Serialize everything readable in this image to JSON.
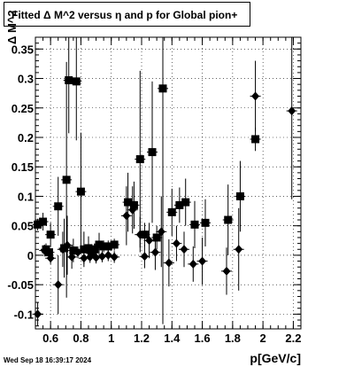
{
  "chart_data": {
    "type": "scatter",
    "title": "Fitted Δ M^2 versus η and p for Global pion+",
    "xlabel": "p[GeV/c]",
    "ylabel": "Δ M^2",
    "xlim": [
      0.5,
      2.25
    ],
    "ylim": [
      -0.125,
      0.37
    ],
    "grid": true,
    "x_ticks": [
      "0.6",
      "0.8",
      "1",
      "1.2",
      "1.4",
      "1.6",
      "1.8",
      "2",
      "2.2"
    ],
    "y_ticks": [
      "-0.1",
      "-0.05",
      "0",
      "0.05",
      "0.1",
      "0.15",
      "0.2",
      "0.25",
      "0.3",
      "0.35"
    ],
    "series": [
      {
        "marker": "square",
        "points": [
          {
            "x": 0.515,
            "y": 0.052,
            "err": 0.01
          },
          {
            "x": 0.55,
            "y": 0.057,
            "err": 0.015
          },
          {
            "x": 0.57,
            "y": 0.01,
            "err": 0.01
          },
          {
            "x": 0.59,
            "y": 0.005,
            "err": 0.01
          },
          {
            "x": 0.6,
            "y": 0.035,
            "err": 0.02
          },
          {
            "x": 0.65,
            "y": 0.083,
            "err": 0.05
          },
          {
            "x": 0.69,
            "y": 0.012,
            "err": 0.05
          },
          {
            "x": 0.705,
            "y": 0.128,
            "err": 0.2
          },
          {
            "x": 0.72,
            "y": 0.297,
            "err": 0.09
          },
          {
            "x": 0.75,
            "y": 0.008,
            "err": 0.02
          },
          {
            "x": 0.77,
            "y": 0.295,
            "err": 0.1
          },
          {
            "x": 0.8,
            "y": 0.108,
            "err": 0.1
          },
          {
            "x": 0.82,
            "y": 0.01,
            "err": 0.03
          },
          {
            "x": 0.85,
            "y": 0.012,
            "err": 0.02
          },
          {
            "x": 0.87,
            "y": 0.003,
            "err": 0.01
          },
          {
            "x": 0.89,
            "y": 0.01,
            "err": 0.01
          },
          {
            "x": 0.92,
            "y": 0.018,
            "err": 0.02
          },
          {
            "x": 0.95,
            "y": 0.015,
            "err": 0.01
          },
          {
            "x": 0.98,
            "y": 0.015,
            "err": 0.01
          },
          {
            "x": 1.02,
            "y": 0.018,
            "err": 0.01
          },
          {
            "x": 1.11,
            "y": 0.09,
            "err": 0.05
          },
          {
            "x": 1.15,
            "y": 0.085,
            "err": 0.04
          },
          {
            "x": 1.19,
            "y": 0.163,
            "err": 0.15
          },
          {
            "x": 1.22,
            "y": 0.035,
            "err": 0.02
          },
          {
            "x": 1.27,
            "y": 0.175,
            "err": 0.12
          },
          {
            "x": 1.3,
            "y": 0.03,
            "err": 0.02
          },
          {
            "x": 1.34,
            "y": 0.283,
            "err": 0.4
          },
          {
            "x": 1.4,
            "y": 0.073,
            "err": 0.04
          },
          {
            "x": 1.45,
            "y": 0.085,
            "err": 0.03
          },
          {
            "x": 1.49,
            "y": 0.09,
            "err": 0.04
          },
          {
            "x": 1.55,
            "y": 0.052,
            "err": 0.04
          },
          {
            "x": 1.62,
            "y": 0.055,
            "err": 0.04
          },
          {
            "x": 1.77,
            "y": 0.06,
            "err": 0.06
          },
          {
            "x": 1.85,
            "y": 0.1,
            "err": 0.06
          },
          {
            "x": 1.95,
            "y": 0.197,
            "err": 0.02
          }
        ]
      },
      {
        "marker": "diamond",
        "points": [
          {
            "x": 0.515,
            "y": -0.1,
            "err": 0.02
          },
          {
            "x": 0.56,
            "y": 0.008,
            "err": 0.01
          },
          {
            "x": 0.6,
            "y": -0.005,
            "err": 0.01
          },
          {
            "x": 0.65,
            "y": -0.05,
            "err": 0.05
          },
          {
            "x": 0.68,
            "y": 0.01,
            "err": 0.03
          },
          {
            "x": 0.71,
            "y": 0.017,
            "err": 0.05
          },
          {
            "x": 0.74,
            "y": -0.003,
            "err": 0.02
          },
          {
            "x": 0.78,
            "y": 0.005,
            "err": 0.01
          },
          {
            "x": 0.82,
            "y": -0.005,
            "err": 0.01
          },
          {
            "x": 0.86,
            "y": -0.003,
            "err": 0.01
          },
          {
            "x": 0.9,
            "y": -0.004,
            "err": 0.01
          },
          {
            "x": 0.94,
            "y": -0.002,
            "err": 0.01
          },
          {
            "x": 0.98,
            "y": 0.0,
            "err": 0.01
          },
          {
            "x": 1.02,
            "y": -0.003,
            "err": 0.01
          },
          {
            "x": 1.1,
            "y": 0.067,
            "err": 0.05
          },
          {
            "x": 1.14,
            "y": 0.077,
            "err": 0.04
          },
          {
            "x": 1.19,
            "y": 0.035,
            "err": 0.03
          },
          {
            "x": 1.22,
            "y": -0.002,
            "err": 0.02
          },
          {
            "x": 1.25,
            "y": 0.025,
            "err": 0.03
          },
          {
            "x": 1.29,
            "y": 0.005,
            "err": 0.03
          },
          {
            "x": 1.33,
            "y": 0.04,
            "err": 0.06
          },
          {
            "x": 1.38,
            "y": -0.013,
            "err": 0.04
          },
          {
            "x": 1.43,
            "y": 0.02,
            "err": 0.03
          },
          {
            "x": 1.48,
            "y": 0.01,
            "err": 0.03
          },
          {
            "x": 1.54,
            "y": -0.015,
            "err": 0.03
          },
          {
            "x": 1.6,
            "y": -0.01,
            "err": 0.04
          },
          {
            "x": 1.76,
            "y": -0.027,
            "err": 0.04
          },
          {
            "x": 1.84,
            "y": 0.01,
            "err": 0.07
          },
          {
            "x": 1.95,
            "y": 0.27,
            "err": 0.06
          },
          {
            "x": 2.19,
            "y": 0.245,
            "err": 0.15
          }
        ]
      }
    ]
  },
  "footer": {
    "timestamp": "Wed Sep 18 16:39:17 2024"
  }
}
